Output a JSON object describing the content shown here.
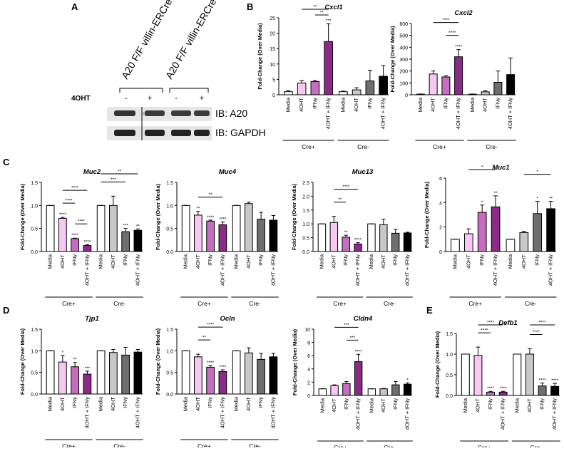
{
  "panel_labels": [
    "A",
    "B",
    "C",
    "D",
    "E"
  ],
  "blot": {
    "lanes": [
      "A20 F/F villin-ERCre+",
      "A20 F/F villin-ERCre-"
    ],
    "treatment": "4OHT",
    "signs": [
      "-",
      "+",
      "-",
      "+"
    ],
    "bands": [
      "IB: A20",
      "IB: GAPDH"
    ]
  },
  "chart_data": [
    {
      "type": "bar",
      "title": "Cxcl1",
      "y_label": "Fold-Change (Over Media)",
      "categories": [
        "Media",
        "4OHT",
        "IFNγ",
        "4OHT + IFNγ",
        "Media",
        "4OHT",
        "IFNγ",
        "4OHT + IFNγ"
      ],
      "groups": [
        "Cre+",
        "Cre-"
      ],
      "values": [
        1,
        3.8,
        4.3,
        17.3,
        1,
        1.6,
        4.5,
        6
      ],
      "errors": [
        0.3,
        0.8,
        0.3,
        5.8,
        0.2,
        0.7,
        3.5,
        3.5
      ],
      "colors": [
        "#ffffff",
        "#f7c8f2",
        "#c86cc0",
        "#8c2a88",
        "#ffffff",
        "#c8c8c8",
        "#6e6e6e",
        "#000000"
      ],
      "stars": [
        null,
        null,
        null,
        "***",
        null,
        null,
        null,
        null
      ],
      "brackets": [
        "**",
        "**"
      ],
      "ylim": [
        0,
        25
      ],
      "yticks": [
        0,
        5,
        10,
        15,
        20,
        25
      ]
    },
    {
      "type": "bar",
      "title": "Cxcl2",
      "y_label": "Fold-Change (Over Media)",
      "categories": [
        "Media",
        "4OHT",
        "IFNγ",
        "4OHT + IFNγ",
        "Media",
        "4OHT",
        "IFNγ",
        "4OHT + IFNγ"
      ],
      "groups": [
        "Cre+",
        "Cre-"
      ],
      "values": [
        5,
        175,
        150,
        320,
        5,
        25,
        105,
        170
      ],
      "errors": [
        2,
        25,
        10,
        60,
        2,
        8,
        95,
        140
      ],
      "colors": [
        "#ffffff",
        "#f7c8f2",
        "#c86cc0",
        "#8c2a88",
        "#ffffff",
        "#c8c8c8",
        "#6e6e6e",
        "#000000"
      ],
      "stars": [
        null,
        null,
        null,
        "****",
        null,
        null,
        null,
        null
      ],
      "brackets": [
        "****",
        "****"
      ],
      "ylim": [
        0,
        600
      ],
      "yticks": [
        0,
        100,
        200,
        300,
        400,
        500,
        600
      ]
    },
    {
      "type": "bar",
      "title": "Muc2",
      "y_label": "Fold-Change (Over Media)",
      "categories": [
        "Media",
        "4OHT",
        "IFNγ",
        "4OHT + IFNγ",
        "Media",
        "4OHT",
        "IFNγ",
        "4OHT + IFNγ"
      ],
      "groups": [
        "Cre+",
        "Cre-"
      ],
      "values": [
        1,
        0.72,
        0.28,
        0.13,
        1,
        1.0,
        0.43,
        0.46
      ],
      "errors": [
        0,
        0.02,
        0.01,
        0.02,
        0,
        0.2,
        0.07,
        0.03
      ],
      "colors": [
        "#ffffff",
        "#f7c8f2",
        "#c86cc0",
        "#8c2a88",
        "#ffffff",
        "#c8c8c8",
        "#6e6e6e",
        "#000000"
      ],
      "stars": [
        null,
        "****",
        "****",
        "****",
        null,
        null,
        "***",
        "**"
      ],
      "brackets": [
        "****",
        "****",
        "****",
        "***",
        "**"
      ],
      "ylim": [
        0,
        1.5
      ],
      "yticks": [
        {
          "value": 0,
          "label": "0.0"
        },
        0.5,
        {
          "value": 1,
          "label": "1.0"
        },
        1.5
      ]
    },
    {
      "type": "bar",
      "title": "Muc4",
      "y_label": "Fold-Change (Over Media)",
      "categories": [
        "Media",
        "4OHT",
        "IFNγ",
        "4OHT + IFNγ",
        "Media",
        "4OHT",
        "IFNγ",
        "4OHT + IFNγ"
      ],
      "groups": [
        "Cre+",
        "Cre-"
      ],
      "values": [
        1,
        0.79,
        0.66,
        0.58,
        1,
        1.04,
        0.7,
        0.68
      ],
      "errors": [
        0,
        0.08,
        0.02,
        0.06,
        0,
        0.03,
        0.15,
        0.1
      ],
      "colors": [
        "#ffffff",
        "#f7c8f2",
        "#c86cc0",
        "#8c2a88",
        "#ffffff",
        "#c8c8c8",
        "#6e6e6e",
        "#000000"
      ],
      "stars": [
        null,
        "**",
        "****",
        "****",
        null,
        null,
        null,
        null
      ],
      "brackets": [
        "**"
      ],
      "ylim": [
        0,
        1.5
      ],
      "yticks": [
        {
          "value": 0,
          "label": "0.0"
        },
        0.5,
        {
          "value": 1,
          "label": "1.0"
        },
        1.5
      ]
    },
    {
      "type": "bar",
      "title": "Muc13",
      "y_label": "Fold-Change (Over Media)",
      "categories": [
        "Media",
        "4OHT",
        "IFNγ",
        "4OHT + IFNγ",
        "Media",
        "4OHT",
        "IFNγ",
        "4OHT + IFNγ"
      ],
      "groups": [
        "Cre+",
        "Cre-"
      ],
      "values": [
        1,
        1.05,
        0.52,
        0.27,
        1,
        0.97,
        0.66,
        0.67
      ],
      "errors": [
        0,
        0.22,
        0.07,
        0.05,
        0,
        0.2,
        0.14,
        0.03
      ],
      "colors": [
        "#ffffff",
        "#f7c8f2",
        "#c86cc0",
        "#8c2a88",
        "#ffffff",
        "#c8c8c8",
        "#6e6e6e",
        "#000000"
      ],
      "stars": [
        null,
        null,
        "**",
        "****",
        null,
        null,
        null,
        null
      ],
      "brackets": [
        "****",
        "**"
      ],
      "ylim": [
        0,
        2.5
      ],
      "yticks": [
        {
          "value": 0,
          "label": "0.0"
        },
        0.5,
        {
          "value": 1,
          "label": "1.0"
        },
        1.5,
        {
          "value": 2,
          "label": "2.0"
        },
        2.5
      ]
    },
    {
      "type": "bar",
      "title": "Muc1",
      "y_label": "Fold-Change (Over Media)",
      "categories": [
        "Media",
        "4OHT",
        "IFNγ",
        "4OHT + IFNγ",
        "Media",
        "4OHT",
        "IFNγ",
        "4OHT + IFNγ"
      ],
      "groups": [
        "Cre+",
        "Cre-"
      ],
      "values": [
        1,
        1.45,
        3.2,
        3.65,
        1,
        1.55,
        3.1,
        3.5
      ],
      "errors": [
        0,
        0.4,
        0.6,
        0.9,
        0,
        0.1,
        1.0,
        0.6
      ],
      "colors": [
        "#ffffff",
        "#f7c8f2",
        "#c86cc0",
        "#8c2a88",
        "#ffffff",
        "#c8c8c8",
        "#6e6e6e",
        "#000000"
      ],
      "stars": [
        null,
        null,
        "*",
        "**",
        null,
        null,
        "*",
        "**"
      ],
      "brackets": [
        "*",
        "*"
      ],
      "ylim": [
        0,
        6
      ],
      "yticks": [
        0,
        2,
        4,
        6
      ]
    },
    {
      "type": "bar",
      "title": "Tjp1",
      "y_label": "Fold-Change (Over Media)",
      "categories": [
        "Media",
        "4OHT",
        "IFNγ",
        "4OHT + IFNγ",
        "Media",
        "4OHT",
        "IFNγ",
        "4OHT + IFNγ"
      ],
      "groups": [
        "Cre+",
        "Cre-"
      ],
      "values": [
        1,
        0.74,
        0.63,
        0.46,
        1,
        0.96,
        0.9,
        0.97
      ],
      "errors": [
        0,
        0.15,
        0.1,
        0.07,
        0,
        0.07,
        0.18,
        0.06
      ],
      "colors": [
        "#ffffff",
        "#f7c8f2",
        "#c86cc0",
        "#8c2a88",
        "#ffffff",
        "#c8c8c8",
        "#6e6e6e",
        "#000000"
      ],
      "stars": [
        null,
        "*",
        "**",
        "***",
        null,
        null,
        null,
        null
      ],
      "brackets": [],
      "ylim": [
        0,
        1.5
      ],
      "yticks": [
        {
          "value": 0,
          "label": "0.0"
        },
        0.5,
        {
          "value": 1,
          "label": "1.0"
        },
        1.5
      ]
    },
    {
      "type": "bar",
      "title": "Ocln",
      "y_label": "Fold-Change (Over Media)",
      "categories": [
        "Media",
        "4OHT",
        "IFNγ",
        "4OHT + IFNγ",
        "Media",
        "4OHT",
        "IFNγ",
        "4OHT + IFNγ"
      ],
      "groups": [
        "Cre+",
        "Cre-"
      ],
      "values": [
        1,
        0.86,
        0.62,
        0.52,
        1,
        0.95,
        0.8,
        0.86
      ],
      "errors": [
        0,
        0.06,
        0.04,
        0.04,
        0,
        0.12,
        0.14,
        0.08
      ],
      "colors": [
        "#ffffff",
        "#f7c8f2",
        "#c86cc0",
        "#8c2a88",
        "#ffffff",
        "#c8c8c8",
        "#6e6e6e",
        "#000000"
      ],
      "stars": [
        null,
        null,
        "****",
        "****",
        null,
        null,
        null,
        null
      ],
      "brackets": [
        "****",
        "**"
      ],
      "ylim": [
        0,
        1.5
      ],
      "yticks": [
        {
          "value": 0,
          "label": "0.0"
        },
        0.5,
        {
          "value": 1,
          "label": "1.0"
        },
        1.5
      ]
    },
    {
      "type": "bar",
      "title": "Cldn4",
      "y_label": "Fold-Change (Over Media)",
      "categories": [
        "Media",
        "4OHT",
        "IFNγ",
        "4OHT + IFNγ",
        "Media",
        "4OHT",
        "IFNγ",
        "4OHT + IFNγ"
      ],
      "groups": [
        "Cre+",
        "Cre-"
      ],
      "values": [
        1,
        1.5,
        1.8,
        5.1,
        1,
        1.0,
        1.6,
        1.7
      ],
      "errors": [
        0,
        0.1,
        0.3,
        1.1,
        0,
        0.05,
        0.5,
        0.2
      ],
      "colors": [
        "#ffffff",
        "#f7c8f2",
        "#c86cc0",
        "#8c2a88",
        "#ffffff",
        "#c8c8c8",
        "#6e6e6e",
        "#000000"
      ],
      "stars": [
        null,
        null,
        null,
        "****",
        null,
        null,
        null,
        "*"
      ],
      "brackets": [
        "***",
        "***"
      ],
      "ylim": [
        0,
        10
      ],
      "yticks": [
        0,
        2,
        4,
        6,
        8,
        10
      ]
    },
    {
      "type": "bar",
      "title": "Defb1",
      "y_label": "Fold-Change (Over Media)",
      "categories": [
        "Media",
        "4OHT",
        "IFNγ",
        "4OHT + IFNγ",
        "Media",
        "4OHT",
        "IFNγ",
        "4OHT + IFNγ"
      ],
      "groups": [
        "Cre+",
        "Cre-"
      ],
      "values": [
        1,
        0.97,
        0.08,
        0.08,
        1,
        1.0,
        0.23,
        0.22
      ],
      "errors": [
        0,
        0.2,
        0.02,
        0.02,
        0,
        0.13,
        0.07,
        0.07
      ],
      "colors": [
        "#ffffff",
        "#f7c8f2",
        "#c86cc0",
        "#8c2a88",
        "#ffffff",
        "#c8c8c8",
        "#6e6e6e",
        "#000000"
      ],
      "stars": [
        null,
        null,
        "****",
        "****",
        null,
        null,
        "****",
        "****"
      ],
      "brackets": [
        "****",
        "****",
        "****",
        "****"
      ],
      "ylim": [
        0,
        1.5
      ],
      "yticks": [
        {
          "value": 0,
          "label": "0.0"
        },
        0.5,
        {
          "value": 1,
          "label": "1.0"
        },
        1.5
      ]
    }
  ]
}
